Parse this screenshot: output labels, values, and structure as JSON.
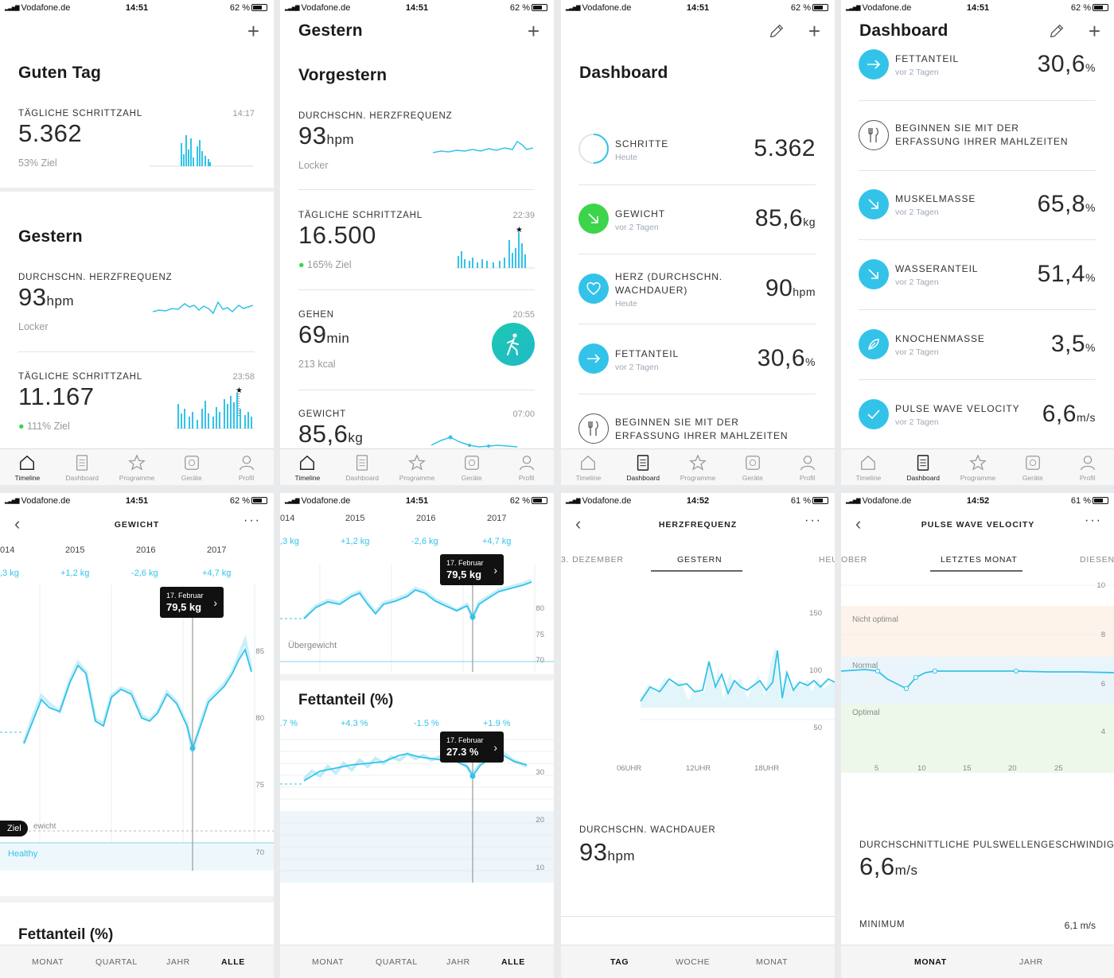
{
  "status": [
    {
      "carrier": "Vodafone.de",
      "time": "14:51",
      "battery": "62 %"
    },
    {
      "carrier": "Vodafone.de",
      "time": "14:51",
      "battery": "62 %"
    },
    {
      "carrier": "Vodafone.de",
      "time": "14:51",
      "battery": "62 %"
    },
    {
      "carrier": "Vodafone.de",
      "time": "14:51",
      "battery": "62 %"
    },
    {
      "carrier": "Vodafone.de",
      "time": "14:51",
      "battery": "62 %"
    },
    {
      "carrier": "Vodafone.de",
      "time": "14:51",
      "battery": "62 %"
    },
    {
      "carrier": "Vodafone.de",
      "time": "14:52",
      "battery": "61 %"
    },
    {
      "carrier": "Vodafone.de",
      "time": "14:52",
      "battery": "61 %"
    }
  ],
  "tabs": [
    "Timeline",
    "Dashboard",
    "Programme",
    "Geräte",
    "Profil"
  ],
  "s1": {
    "heading": "Guten Tag",
    "steps_label": "TÄGLICHE SCHRITTZAHL",
    "steps_time": "14:17",
    "steps_value": "5.362",
    "steps_goal": "53% Ziel",
    "section2": "Gestern",
    "hr_label": "DURCHSCHN. HERZFREQUENZ",
    "hr_value": "93",
    "hr_unit": "hpm",
    "hr_status": "Locker",
    "steps2_label": "TÄGLICHE SCHRITTZAHL",
    "steps2_time": "23:58",
    "steps2_value": "11.167",
    "steps2_goal": "111% Ziel"
  },
  "s2": {
    "heading": "Gestern",
    "section": "Vorgestern",
    "hr_label": "DURCHSCHN. HERZFREQUENZ",
    "hr_value": "93",
    "hr_unit": "hpm",
    "hr_status": "Locker",
    "steps_label": "TÄGLICHE SCHRITTZAHL",
    "steps_time": "22:39",
    "steps_value": "16.500",
    "steps_goal": "165% Ziel",
    "walk_label": "GEHEN",
    "walk_time": "20:55",
    "walk_value": "69",
    "walk_unit": "min",
    "walk_kcal": "213 kcal",
    "weight_label": "GEWICHT",
    "weight_time": "07:00",
    "weight_value": "85,6",
    "weight_unit": "kg"
  },
  "s3": {
    "heading": "Dashboard",
    "rows": [
      {
        "label": "SCHRITTE",
        "sub": "Heute",
        "value": "5.362",
        "unit": ""
      },
      {
        "label": "GEWICHT",
        "sub": "vor 2 Tagen",
        "value": "85,6",
        "unit": "kg"
      },
      {
        "label": "HERZ (DURCHSCHN. WACHDAUER)",
        "sub": "Heute",
        "value": "90",
        "unit": "hpm"
      },
      {
        "label": "FETTANTEIL",
        "sub": "vor 2 Tagen",
        "value": "30,6",
        "unit": "%"
      },
      {
        "label": "BEGINNEN SIE MIT DER ERFASSUNG IHRER MAHLZEITEN",
        "sub": "",
        "value": "",
        "unit": ""
      }
    ]
  },
  "s4": {
    "heading": "Dashboard",
    "rows": [
      {
        "label": "FETTANTEIL",
        "sub": "vor 2 Tagen",
        "value": "30,6",
        "unit": "%"
      },
      {
        "label": "BEGINNEN SIE MIT DER ERFASSUNG IHRER MAHLZEITEN",
        "sub": "",
        "value": "",
        "unit": ""
      },
      {
        "label": "MUSKELMASSE",
        "sub": "vor 2 Tagen",
        "value": "65,8",
        "unit": "%"
      },
      {
        "label": "WASSERANTEIL",
        "sub": "vor 2 Tagen",
        "value": "51,4",
        "unit": "%"
      },
      {
        "label": "KNOCHENMASSE",
        "sub": "vor 2 Tagen",
        "value": "3,5",
        "unit": "%"
      },
      {
        "label": "PULSE WAVE VELOCITY",
        "sub": "vor 2 Tagen",
        "value": "6,6",
        "unit": "m/s"
      }
    ]
  },
  "s5": {
    "title": "GEWICHT",
    "years": [
      "014",
      "2015",
      "2016",
      "2017"
    ],
    "deltas": [
      ",3 kg",
      "+1,2 kg",
      "-2,6 kg",
      "+4,7 kg"
    ],
    "tooltip_date": "17. Februar",
    "tooltip_value": "79,5 kg",
    "yaxis": [
      "85",
      "80",
      "75",
      "70"
    ],
    "goal_btn": "Ziel",
    "goal_text": "ewicht",
    "zone": "Healthy",
    "section": "Fettanteil (%)",
    "seg": [
      "MONAT",
      "QUARTAL",
      "JAHR",
      "ALLE"
    ]
  },
  "s6": {
    "years": [
      "014",
      "2015",
      "2016",
      "2017"
    ],
    "deltas": [
      ",3 kg",
      "+1,2 kg",
      "-2,6 kg",
      "+4,7 kg"
    ],
    "tooltip1_date": "17. Februar",
    "tooltip1_value": "79,5 kg",
    "yaxis1": [
      "80",
      "75",
      "70"
    ],
    "zone1": "Übergewicht",
    "section": "Fettanteil (%)",
    "deltas2": [
      ".7 %",
      "+4.3 %",
      "-1.5 %",
      "+1.9 %"
    ],
    "tooltip2_date": "17. Februar",
    "tooltip2_value": "27.3 %",
    "yaxis2": [
      "30",
      "20",
      "10"
    ],
    "seg": [
      "MONAT",
      "QUARTAL",
      "JAHR",
      "ALLE"
    ]
  },
  "s7": {
    "title": "HERZFREQUENZ",
    "tabs": [
      "3. DEZEMBER",
      "GESTERN",
      "HEU"
    ],
    "yaxis": [
      "150",
      "100",
      "50"
    ],
    "xaxis": [
      "06UHR",
      "12UHR",
      "18UHR"
    ],
    "avg_label": "DURCHSCHN. WACHDAUER",
    "avg_value": "93",
    "avg_unit": "hpm",
    "seg": [
      "TAG",
      "WOCHE",
      "MONAT"
    ]
  },
  "s8": {
    "title": "PULSE WAVE VELOCITY",
    "tabs": [
      "OBER",
      "LETZTES MONAT",
      "DIESEN"
    ],
    "yaxis": [
      "10",
      "8",
      "6",
      "4"
    ],
    "xaxis": [
      "5",
      "10",
      "15",
      "20",
      "25"
    ],
    "zones": [
      "Nicht optimal",
      "Normal",
      "Optimal"
    ],
    "avg_label": "DURCHSCHNITTLICHE PULSWELLENGESCHWINDIGKE",
    "avg_value": "6,6",
    "avg_unit": "m/s",
    "min_label": "MINIMUM",
    "min_value": "6,1 m/s",
    "seg": [
      "MONAT",
      "JAHR"
    ]
  },
  "colors": {
    "accent": "#33c3e9",
    "green": "#3cd44a",
    "walk": "#1ec8b0"
  }
}
